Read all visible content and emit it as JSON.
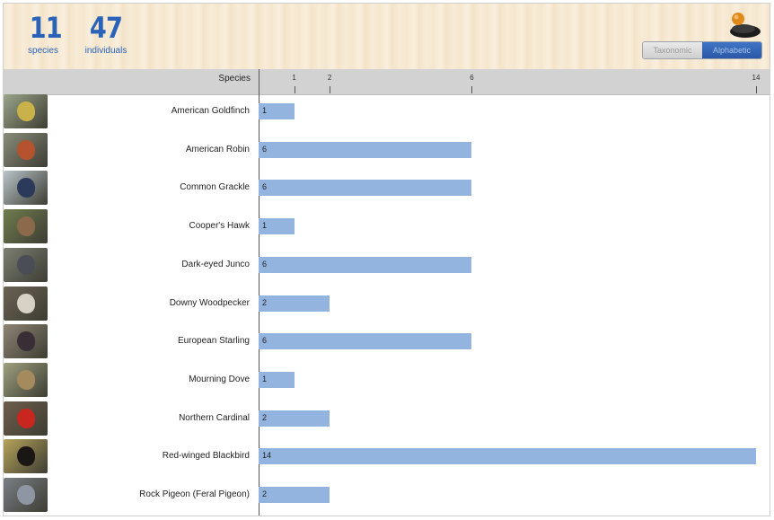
{
  "summary": {
    "species_count": "11",
    "species_label": "species",
    "individuals_count": "47",
    "individuals_label": "individuals"
  },
  "toggle": {
    "options": [
      "Taxonomic",
      "Alphabetic"
    ],
    "selected": "Alphabetic"
  },
  "chart_data": {
    "type": "bar",
    "orientation": "horizontal",
    "column_header": "Species",
    "xlim": [
      0,
      14
    ],
    "ticks": [
      1,
      2,
      6,
      14
    ],
    "categories": [
      "American Goldfinch",
      "American Robin",
      "Common Grackle",
      "Cooper's Hawk",
      "Dark-eyed Junco",
      "Downy Woodpecker",
      "European Starling",
      "Mourning Dove",
      "Northern Cardinal",
      "Red-winged Blackbird",
      "Rock Pigeon (Feral Pigeon)"
    ],
    "values": [
      1,
      6,
      6,
      1,
      6,
      2,
      6,
      1,
      2,
      14,
      2
    ],
    "bar_color": "#94b4e0",
    "thumbnails": [
      {
        "bg": "#9aa58a",
        "bird": "#c9b24a"
      },
      {
        "bg": "#8a8d7a",
        "bird": "#b4532e"
      },
      {
        "bg": "#b8c4c8",
        "bird": "#2b3a5a"
      },
      {
        "bg": "#6f7d4e",
        "bird": "#8a6a4a"
      },
      {
        "bg": "#7c7f72",
        "bird": "#4a4d55"
      },
      {
        "bg": "#6a6253",
        "bird": "#d8d2c6"
      },
      {
        "bg": "#8e8474",
        "bird": "#3a2e36"
      },
      {
        "bg": "#9ea07e",
        "bird": "#a58a5e"
      },
      {
        "bg": "#6e5e4c",
        "bird": "#c8261e"
      },
      {
        "bg": "#b5a35a",
        "bird": "#1a1614"
      },
      {
        "bg": "#7a7f85",
        "bird": "#8e96a4"
      }
    ]
  }
}
